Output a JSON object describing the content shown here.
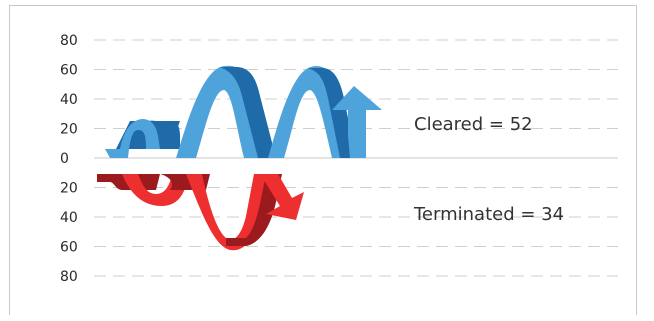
{
  "chart_data": {
    "type": "area",
    "title": "",
    "xlabel": "",
    "ylabel": "",
    "y_ticks_up": [
      "0",
      "20",
      "40",
      "60",
      "80"
    ],
    "y_ticks_down": [
      "20",
      "40",
      "60",
      "80"
    ],
    "ylim": [
      -80,
      80
    ],
    "grid": true,
    "series": [
      {
        "name": "Cleared",
        "label": "Cleared = 52",
        "direction": "up",
        "value": 52,
        "colors": {
          "front": "#4fa3db",
          "back": "#1f6aa8"
        },
        "peaks": [
          15,
          30,
          65,
          65
        ]
      },
      {
        "name": "Terminated",
        "label": "Terminated = 34",
        "direction": "down",
        "value": 34,
        "colors": {
          "front": "#ee2f2f",
          "back": "#9a1a1e"
        },
        "peaks": [
          15,
          30,
          50
        ]
      }
    ]
  }
}
